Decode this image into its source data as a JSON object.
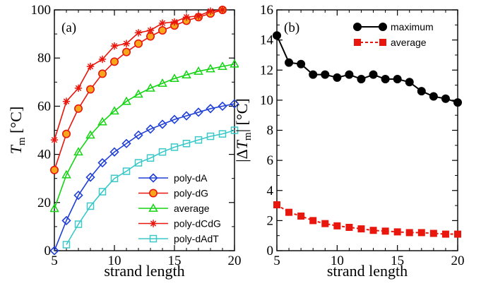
{
  "chart_data": [
    {
      "type": "line",
      "panel_label": "(a)",
      "xlabel": "strand length",
      "ylabel_main": "T",
      "ylabel_sub": "m",
      "ylabel_unit": "[°C]",
      "xlim": [
        5,
        20
      ],
      "ylim": [
        0,
        100
      ],
      "xticks": [
        5,
        10,
        15,
        20
      ],
      "yticks": [
        0,
        20,
        40,
        60,
        80,
        100
      ],
      "legend_position": "bottom-right",
      "series": [
        {
          "name": "poly-dA",
          "color": "#1f3fd6",
          "marker": "diamond",
          "x": [
            5,
            6,
            7,
            8,
            9,
            10,
            11,
            12,
            13,
            14,
            15,
            16,
            17,
            18,
            19,
            20
          ],
          "y": [
            0,
            12.5,
            23,
            30.5,
            36.5,
            41,
            44.5,
            48,
            50.5,
            52.5,
            54.5,
            56,
            57.5,
            59,
            60,
            61
          ]
        },
        {
          "name": "poly-dG",
          "color": "#e8160c",
          "marker": "circle",
          "fill": "#f7a51c",
          "x": [
            5,
            6,
            7,
            8,
            9,
            10,
            11,
            12,
            13,
            14,
            15,
            16,
            17,
            18,
            19
          ],
          "y": [
            33.5,
            48.5,
            59,
            67,
            73.5,
            78.5,
            82.5,
            86,
            89,
            91.5,
            93.5,
            95.5,
            97,
            98.5,
            100
          ]
        },
        {
          "name": "average",
          "color": "#14d414",
          "marker": "triangle",
          "x": [
            5,
            6,
            7,
            8,
            9,
            10,
            11,
            12,
            13,
            14,
            15,
            16,
            17,
            18,
            19,
            20
          ],
          "y": [
            17.5,
            31.5,
            41,
            48,
            53.5,
            58,
            62,
            65,
            67.5,
            69.5,
            71.5,
            73,
            74.5,
            75.5,
            76.5,
            77.5
          ]
        },
        {
          "name": "poly-dCdG",
          "color": "#e8160c",
          "marker": "star",
          "x": [
            5,
            6,
            7,
            8,
            9,
            10,
            11,
            12,
            13,
            14,
            15,
            16,
            17,
            18,
            19
          ],
          "y": [
            46,
            62,
            67.5,
            76.5,
            79.5,
            85,
            86,
            90.5,
            91.5,
            94.5,
            95,
            97,
            97.5,
            99.5,
            100
          ]
        },
        {
          "name": "poly-dAdT",
          "color": "#3cc8c8",
          "marker": "square",
          "x": [
            6,
            7,
            8,
            9,
            10,
            11,
            12,
            13,
            14,
            15,
            16,
            17,
            18,
            19,
            20
          ],
          "y": [
            2.5,
            11,
            18.5,
            24.5,
            30,
            33,
            36.5,
            38.5,
            41,
            43,
            44.5,
            46,
            47.5,
            48.5,
            50
          ]
        }
      ]
    },
    {
      "type": "line",
      "panel_label": "(b)",
      "xlabel": "strand length",
      "ylabel_main": "|ΔT",
      "ylabel_sub": "m",
      "ylabel_unit": "| [°C]",
      "xlim": [
        5,
        20
      ],
      "ylim": [
        0,
        16
      ],
      "xticks": [
        5,
        10,
        15,
        20
      ],
      "yticks": [
        0,
        2,
        4,
        6,
        8,
        10,
        12,
        14,
        16
      ],
      "legend_position": "top-right",
      "series": [
        {
          "name": "maximum",
          "color": "#000000",
          "marker": "circle",
          "x": [
            5,
            6,
            7,
            8,
            9,
            10,
            11,
            12,
            13,
            14,
            15,
            16,
            17,
            18,
            19,
            20
          ],
          "y": [
            14.3,
            12.5,
            12.4,
            11.7,
            11.7,
            11.5,
            11.7,
            11.4,
            11.7,
            11.4,
            11.4,
            11.2,
            10.6,
            10.25,
            10.1,
            9.85
          ]
        },
        {
          "name": "average",
          "color": "#e8160c",
          "marker": "square",
          "dash": "4,3",
          "x": [
            5,
            6,
            7,
            8,
            9,
            10,
            11,
            12,
            13,
            14,
            15,
            16,
            17,
            18,
            19,
            20
          ],
          "y": [
            3.05,
            2.55,
            2.3,
            2.0,
            1.8,
            1.65,
            1.55,
            1.45,
            1.35,
            1.3,
            1.25,
            1.2,
            1.2,
            1.15,
            1.1,
            1.1
          ]
        }
      ]
    }
  ]
}
